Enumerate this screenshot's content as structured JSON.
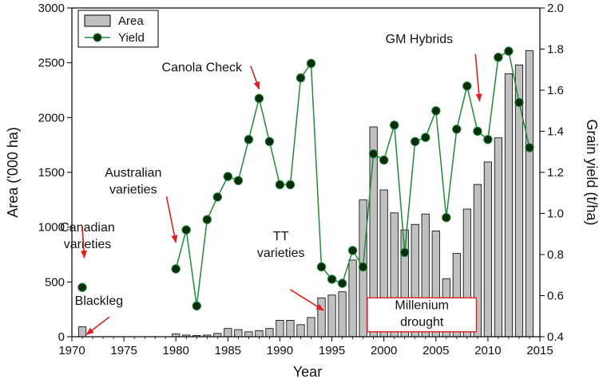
{
  "chart_data": {
    "type": "bar+line",
    "xlabel": "Year",
    "ylabel": "Area ('000 ha)",
    "y2label": "Grain yield (t/ha)",
    "xlim": [
      1970,
      2015
    ],
    "ylim": [
      0,
      3000
    ],
    "y2lim": [
      0.4,
      2.0
    ],
    "x_ticks": [
      "1970",
      "1975",
      "1980",
      "1985",
      "1990",
      "1995",
      "2000",
      "2005",
      "2010",
      "2015"
    ],
    "y_ticks": [
      "0",
      "500",
      "1000",
      "1500",
      "2000",
      "2500",
      "3000"
    ],
    "y2_ticks": [
      "0.4",
      "0.6",
      "0.8",
      "1.0",
      "1.2",
      "1.4",
      "1.6",
      "1.8",
      "2.0"
    ],
    "legend": {
      "placement": "top-left",
      "items": [
        "Area",
        "Yield"
      ]
    },
    "series": [
      {
        "name": "Area",
        "type": "bar",
        "axis": "left",
        "color": "#c0c0c0",
        "x": [
          1971,
          1980,
          1981,
          1982,
          1983,
          1984,
          1985,
          1986,
          1987,
          1988,
          1989,
          1990,
          1991,
          1992,
          1993,
          1994,
          1995,
          1996,
          1997,
          1998,
          1999,
          2000,
          2001,
          2002,
          2003,
          2004,
          2005,
          2006,
          2007,
          2008,
          2009,
          2010,
          2011,
          2012,
          2013,
          2014
        ],
        "values": [
          90,
          25,
          15,
          12,
          15,
          30,
          75,
          65,
          45,
          55,
          75,
          150,
          150,
          110,
          175,
          355,
          380,
          410,
          700,
          1250,
          1915,
          1340,
          1130,
          975,
          1025,
          1120,
          965,
          530,
          760,
          1165,
          1390,
          1595,
          1815,
          2400,
          2480,
          2610
        ]
      },
      {
        "name": "Yield",
        "type": "line",
        "axis": "right",
        "color": "#1f8a3a",
        "marker_color": "#0b2d0b",
        "x": [
          1971,
          1980,
          1981,
          1982,
          1983,
          1984,
          1985,
          1986,
          1987,
          1988,
          1989,
          1990,
          1991,
          1992,
          1993,
          1994,
          1995,
          1996,
          1997,
          1998,
          1999,
          2000,
          2001,
          2002,
          2003,
          2004,
          2005,
          2006,
          2007,
          2008,
          2009,
          2010,
          2011,
          2012,
          2013,
          2014
        ],
        "values": [
          0.64,
          0.73,
          0.92,
          0.55,
          0.97,
          1.08,
          1.18,
          1.16,
          1.36,
          1.56,
          1.35,
          1.14,
          1.14,
          1.66,
          1.73,
          0.74,
          0.68,
          0.66,
          0.82,
          0.74,
          1.29,
          1.26,
          1.43,
          0.81,
          1.35,
          1.37,
          1.5,
          0.98,
          1.41,
          1.62,
          1.4,
          1.36,
          1.76,
          1.79,
          1.54,
          1.32
        ]
      }
    ],
    "annotations": [
      {
        "lines": [
          "Canadian",
          "varieties"
        ],
        "year": 1971.5,
        "ytext": 960,
        "arrow": [
          1971.0,
          1010,
          1971.2,
          720
        ]
      },
      {
        "lines": [
          "Blackleg"
        ],
        "year": 1972.6,
        "ytext": 290,
        "arrow": [
          1973.6,
          180,
          1971.4,
          20
        ]
      },
      {
        "lines": [
          "Australian",
          "varieties"
        ],
        "year": 1975.9,
        "ytext": 1460,
        "arrow": [
          1979.1,
          1280,
          1980.0,
          860
        ]
      },
      {
        "lines": [
          "Canola Check"
        ],
        "year": 1982.5,
        "ytext": 2420,
        "arrow": [
          1987.2,
          2470,
          1988.0,
          2260
        ]
      },
      {
        "lines": [
          "TT",
          "varieties"
        ],
        "year": 1990.1,
        "ytext": 880,
        "arrow": [
          1991.0,
          430,
          1994.2,
          240
        ]
      },
      {
        "lines": [
          "GM Hybrids"
        ],
        "year": 2003.4,
        "ytext": 2680,
        "arrow": [
          2008.8,
          2580,
          2009.2,
          2150
        ]
      }
    ],
    "boxed_annotation": {
      "lines": [
        "Millenium",
        "drought"
      ],
      "from_year": 1998.4,
      "to_year": 2008.9
    },
    "annotation_color": "#e02020"
  }
}
